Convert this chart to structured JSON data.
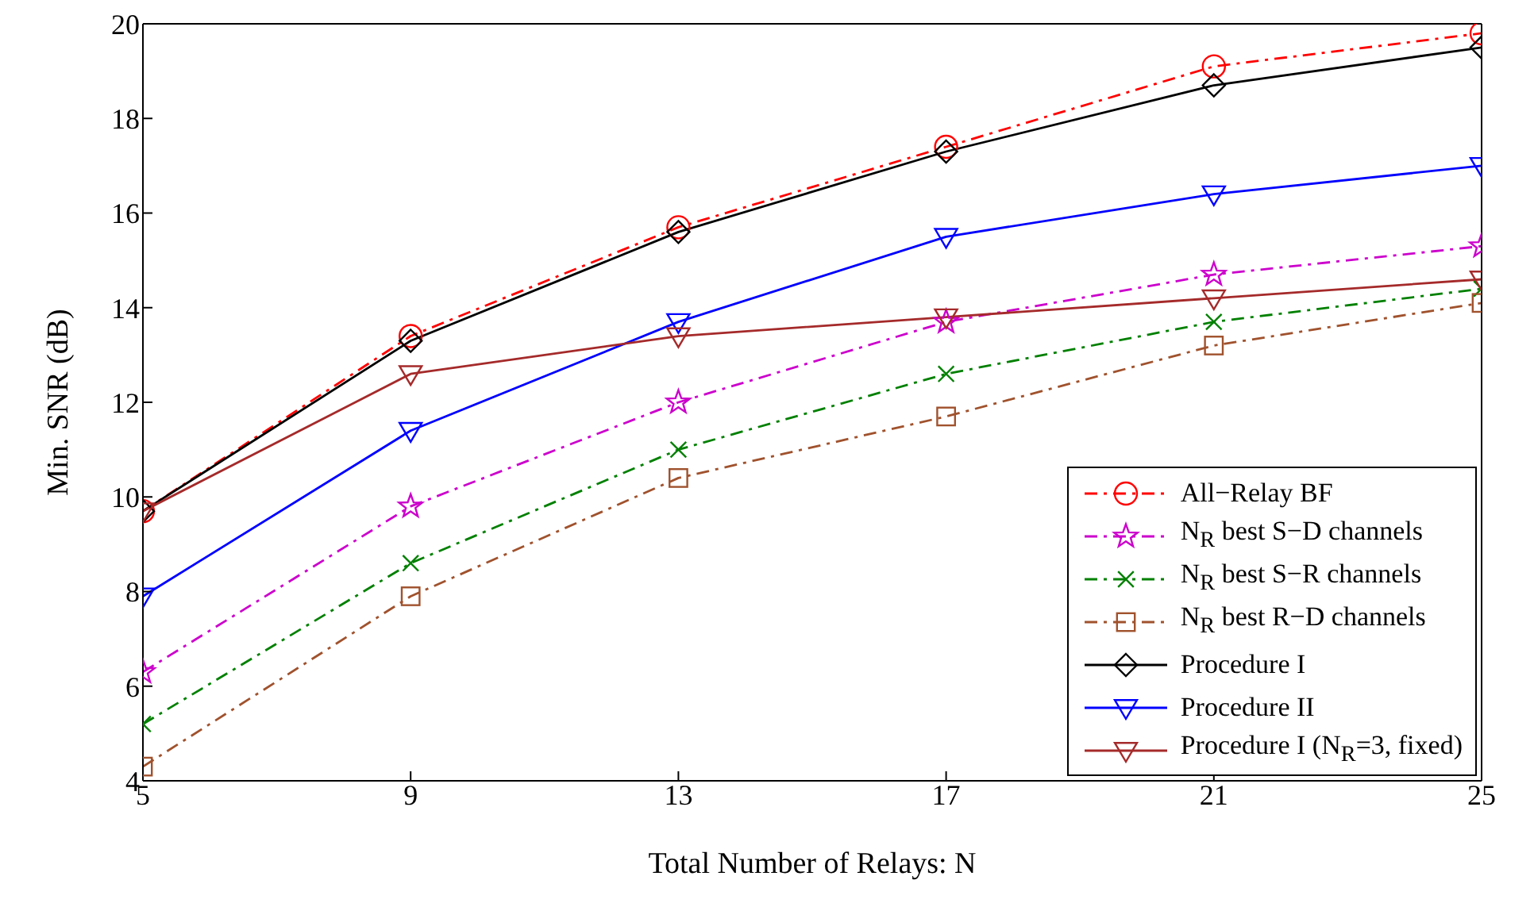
{
  "chart_data": {
    "type": "line",
    "xlabel": "Total Number of Relays: N",
    "ylabel": "Min. SNR (dB)",
    "x": [
      5,
      9,
      13,
      17,
      21,
      25
    ],
    "xlim": [
      5,
      25
    ],
    "xticks": [
      5,
      9,
      13,
      17,
      21,
      25
    ],
    "ylim": [
      4,
      20
    ],
    "yticks": [
      4,
      6,
      8,
      10,
      12,
      14,
      16,
      18,
      20
    ],
    "legend": "bottom right",
    "series": [
      {
        "name": "All−Relay BF",
        "color": "#ff0000",
        "marker": "circle",
        "line_style": "dashed",
        "values": [
          9.7,
          13.4,
          15.7,
          17.4,
          19.1,
          19.8
        ]
      },
      {
        "name": "N$_{R}$ best S−D channels",
        "color": "#cc00cc",
        "marker": "star",
        "line_style": "dashed",
        "values": [
          6.3,
          9.8,
          12.0,
          13.7,
          14.7,
          15.3
        ]
      },
      {
        "name": "N$_{R}$ best S−R channels",
        "color": "#008000",
        "marker": "cross",
        "line_style": "dashed",
        "values": [
          5.2,
          8.6,
          11.0,
          12.6,
          13.7,
          14.4
        ]
      },
      {
        "name": "N$_{R}$ best R−D channels",
        "color": "#a0522d",
        "marker": "square",
        "line_style": "dashed",
        "values": [
          4.3,
          7.9,
          10.4,
          11.7,
          13.2,
          14.1
        ]
      },
      {
        "name": "Procedure I",
        "color": "#000000",
        "marker": "diamond",
        "line_style": "solid",
        "values": [
          9.7,
          13.3,
          15.6,
          17.3,
          18.7,
          19.5
        ]
      },
      {
        "name": "Procedure II",
        "color": "#0000ff",
        "marker": "triangle",
        "line_style": "solid",
        "values": [
          7.9,
          11.4,
          13.7,
          15.5,
          16.4,
          17.0
        ]
      },
      {
        "name": "Procedure I (N$_{R}$=3, fixed)",
        "color": "#a52a2a",
        "marker": "triangle",
        "line_style": "solid",
        "values": [
          9.7,
          12.6,
          13.4,
          13.8,
          14.2,
          14.6
        ]
      }
    ]
  }
}
